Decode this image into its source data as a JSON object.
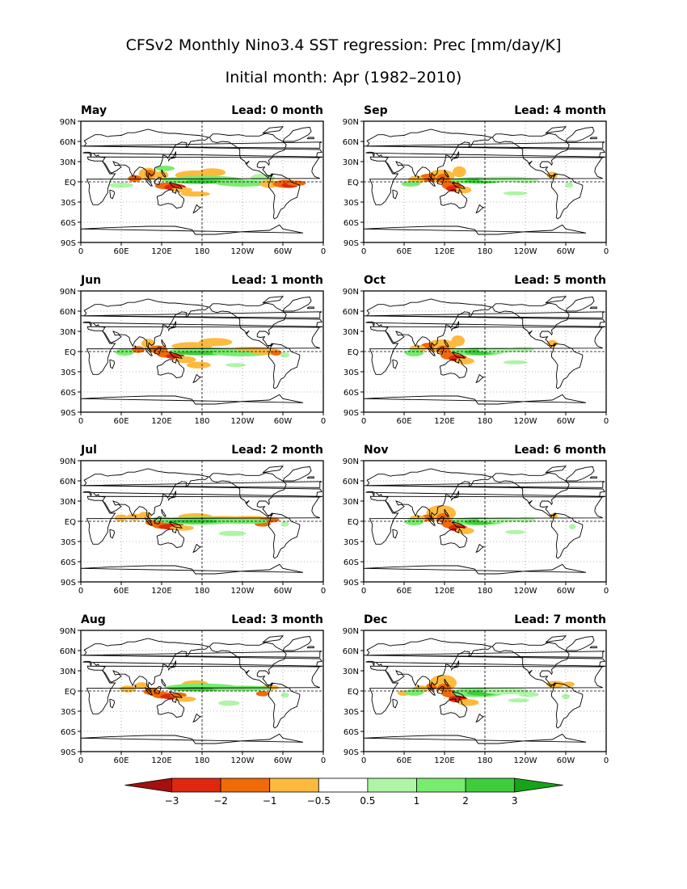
{
  "title_line1": "CFSv2 Monthly Nino3.4 SST regression: Prec [mm/day/K]",
  "title_line2": "Initial month: Apr (1982–2010)",
  "chart_data": {
    "type": "heatmap",
    "variable": "Prec",
    "units": "mm/day/K",
    "grid": true,
    "x_ticks": [
      "0",
      "60E",
      "120E",
      "180",
      "120W",
      "60W",
      "0"
    ],
    "y_ticks": [
      "90N",
      "60N",
      "30N",
      "EQ",
      "30S",
      "60S",
      "90S"
    ],
    "panels": [
      {
        "month": "May",
        "lead_label": "Lead: 0 month"
      },
      {
        "month": "Sep",
        "lead_label": "Lead: 4 month"
      },
      {
        "month": "Jun",
        "lead_label": "Lead: 1 month"
      },
      {
        "month": "Oct",
        "lead_label": "Lead: 5 month"
      },
      {
        "month": "Jul",
        "lead_label": "Lead: 2 month"
      },
      {
        "month": "Nov",
        "lead_label": "Lead: 6 month"
      },
      {
        "month": "Aug",
        "lead_label": "Lead: 3 month"
      },
      {
        "month": "Dec",
        "lead_label": "Lead: 7 month"
      }
    ],
    "colorbar": {
      "labels": [
        "−3",
        "−2",
        "−1",
        "−0.5",
        "0.5",
        "1",
        "2",
        "3"
      ],
      "colors": [
        "#a50f0f",
        "#e0270f",
        "#f06a08",
        "#fdba3e",
        "#ffffff",
        "#aef5a6",
        "#78ec6f",
        "#3ecc3b",
        "#16a418"
      ]
    }
  }
}
